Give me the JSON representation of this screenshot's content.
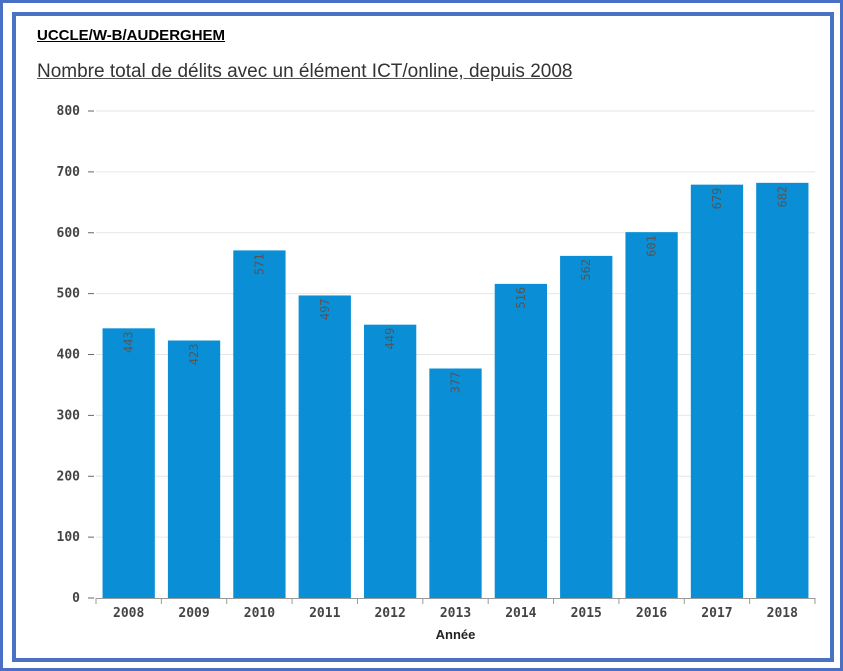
{
  "region": "UCCLE/W-B/AUDERGHEM",
  "colors": {
    "bar": "#0a8fd6",
    "frame": "#4a72c4",
    "grid": "#e6e6e6"
  },
  "chart_data": {
    "type": "bar",
    "title": "Nombre total de délits avec un élément ICT/online, depuis 2008",
    "xlabel": "Année",
    "ylabel": "",
    "categories": [
      "2008",
      "2009",
      "2010",
      "2011",
      "2012",
      "2013",
      "2014",
      "2015",
      "2016",
      "2017",
      "2018"
    ],
    "values": [
      443,
      423,
      571,
      497,
      449,
      377,
      516,
      562,
      601,
      679,
      682
    ],
    "ylim": [
      0,
      800
    ],
    "yticks": [
      0,
      100,
      200,
      300,
      400,
      500,
      600,
      700,
      800
    ],
    "grid": true,
    "data_labels": true,
    "legend": "none"
  }
}
